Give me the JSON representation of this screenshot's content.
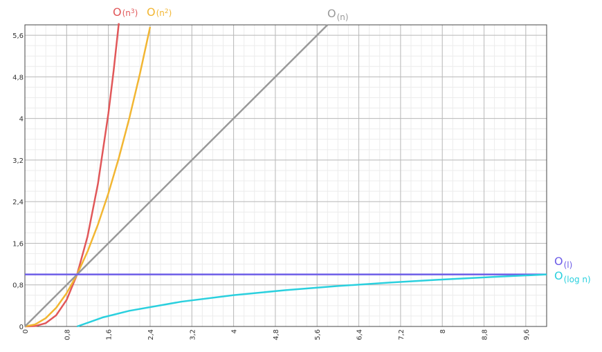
{
  "chart_data": {
    "type": "line",
    "title": "",
    "xlabel": "",
    "ylabel": "",
    "xlim": [
      0,
      10
    ],
    "ylim": [
      0,
      5.8
    ],
    "grid": true,
    "x_ticks": [
      0,
      0.8,
      1.6,
      2.4,
      3.2,
      4,
      4.8,
      5.6,
      6.4,
      7.2,
      8,
      8.8,
      9.6
    ],
    "x_tick_labels": [
      "0",
      "0,8",
      "1,6",
      "2,4",
      "3,2",
      "4",
      "4,8",
      "5,6",
      "6,4",
      "7,2",
      "8",
      "8,8",
      "9,6"
    ],
    "y_ticks": [
      0,
      0.8,
      1.6,
      2.4,
      3.2,
      4,
      4.8,
      5.6
    ],
    "y_tick_labels": [
      "0",
      "0,8",
      "1,6",
      "2,4",
      "3,2",
      "4",
      "4,8",
      "5,6"
    ],
    "series": [
      {
        "name_main": "O",
        "name_sub": "(n3)",
        "name_sub_parts": [
          "(n",
          "3",
          ")"
        ],
        "color": "#e15759",
        "x": [
          0,
          0.2,
          0.4,
          0.6,
          0.8,
          1.0,
          1.2,
          1.4,
          1.6,
          1.7,
          1.8
        ],
        "y": [
          0,
          0.008,
          0.064,
          0.216,
          0.512,
          1.0,
          1.728,
          2.744,
          4.096,
          4.913,
          5.832
        ]
      },
      {
        "name_main": "O",
        "name_sub": "(n2)",
        "name_sub_parts": [
          "(n",
          "2",
          ")"
        ],
        "color": "#f2b632",
        "x": [
          0,
          0.2,
          0.4,
          0.6,
          0.8,
          1.0,
          1.2,
          1.4,
          1.6,
          1.8,
          2.0,
          2.2,
          2.4
        ],
        "y": [
          0,
          0.04,
          0.16,
          0.36,
          0.64,
          1.0,
          1.44,
          1.96,
          2.56,
          3.24,
          4.0,
          4.84,
          5.76
        ]
      },
      {
        "name_main": "O",
        "name_sub": "(n)",
        "color": "#999999",
        "x": [
          0,
          5.8
        ],
        "y": [
          0,
          5.8
        ]
      },
      {
        "name_main": "O",
        "name_sub": "(l)",
        "color": "#6c5ce7",
        "x": [
          0,
          10
        ],
        "y": [
          1,
          1
        ]
      },
      {
        "name_main": "O",
        "name_sub": "(log n)",
        "color": "#2ad0de",
        "x": [
          1,
          1.5,
          2,
          3,
          4,
          5,
          6,
          7,
          8,
          9,
          10
        ],
        "y": [
          0,
          0.176,
          0.301,
          0.477,
          0.602,
          0.699,
          0.778,
          0.845,
          0.903,
          0.954,
          1.0
        ]
      }
    ]
  }
}
